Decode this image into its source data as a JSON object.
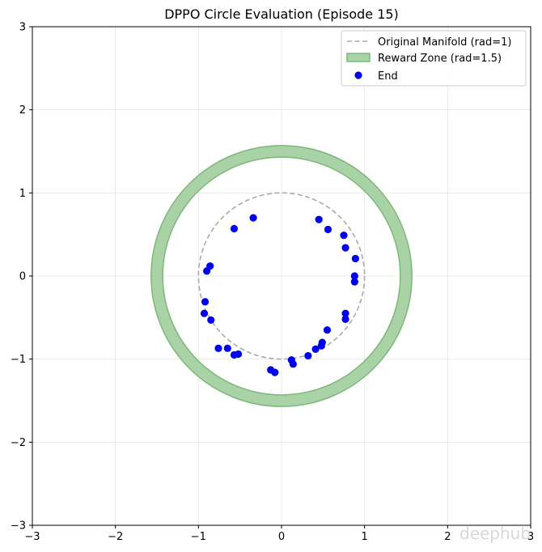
{
  "chart_data": {
    "type": "scatter",
    "title": "DPPO Circle Evaluation (Episode 15)",
    "xlabel": "",
    "ylabel": "",
    "xlim": [
      -3,
      3
    ],
    "ylim": [
      -3,
      3
    ],
    "xticks": [
      -3,
      -2,
      -1,
      0,
      1,
      2,
      3
    ],
    "yticks": [
      -3,
      -2,
      -1,
      0,
      1,
      2,
      3
    ],
    "grid": true,
    "legend_placement": "top-right",
    "manifold": {
      "name": "Original Manifold (rad=1)",
      "radius": 1,
      "color": "#aaaaaa",
      "style": "dashed"
    },
    "reward_zone": {
      "name": "Reward Zone (rad=1.5)",
      "radius": 1.5,
      "inner_radius": 1.43,
      "outer_radius": 1.57,
      "fill_color": "#a9d3a6",
      "edge_color": "#7fb77a"
    },
    "series": [
      {
        "name": "End",
        "color": "#0000ee",
        "x": [
          -0.34,
          -0.57,
          0.45,
          0.56,
          0.75,
          0.77,
          0.89,
          0.88,
          0.88,
          -0.9,
          -0.86,
          -0.92,
          -0.93,
          -0.85,
          0.77,
          0.77,
          0.55,
          0.49,
          0.48,
          0.41,
          0.32,
          0.12,
          0.14,
          -0.13,
          -0.08,
          -0.52,
          -0.57,
          -0.65,
          -0.76
        ],
        "y": [
          0.7,
          0.57,
          0.68,
          0.56,
          0.49,
          0.34,
          0.21,
          0.0,
          -0.07,
          0.06,
          0.12,
          -0.31,
          -0.45,
          -0.53,
          -0.45,
          -0.52,
          -0.65,
          -0.8,
          -0.84,
          -0.88,
          -0.96,
          -1.01,
          -1.06,
          -1.13,
          -1.16,
          -0.94,
          -0.95,
          -0.87,
          -0.87
        ]
      }
    ]
  },
  "watermark": "deephub"
}
